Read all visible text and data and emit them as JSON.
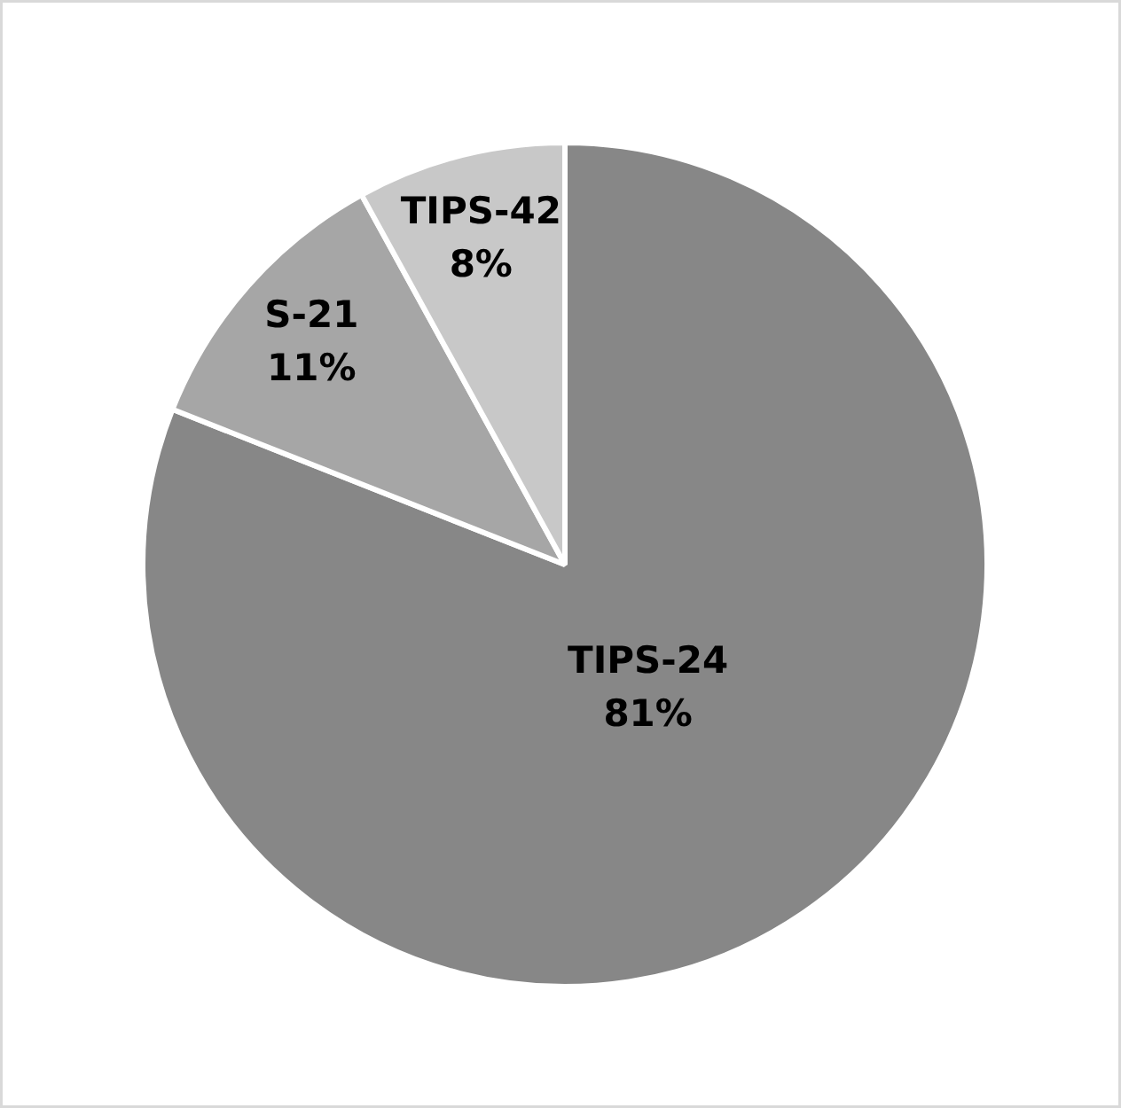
{
  "chart_data": {
    "type": "pie",
    "categories": [
      "TIPS-24",
      "S-21",
      "TIPS-42"
    ],
    "values": [
      81,
      11,
      8
    ],
    "value_labels": [
      "81%",
      "11%",
      "8%"
    ],
    "colors": [
      "#878787",
      "#a6a6a6",
      "#c8c8c8"
    ],
    "legend": false
  }
}
